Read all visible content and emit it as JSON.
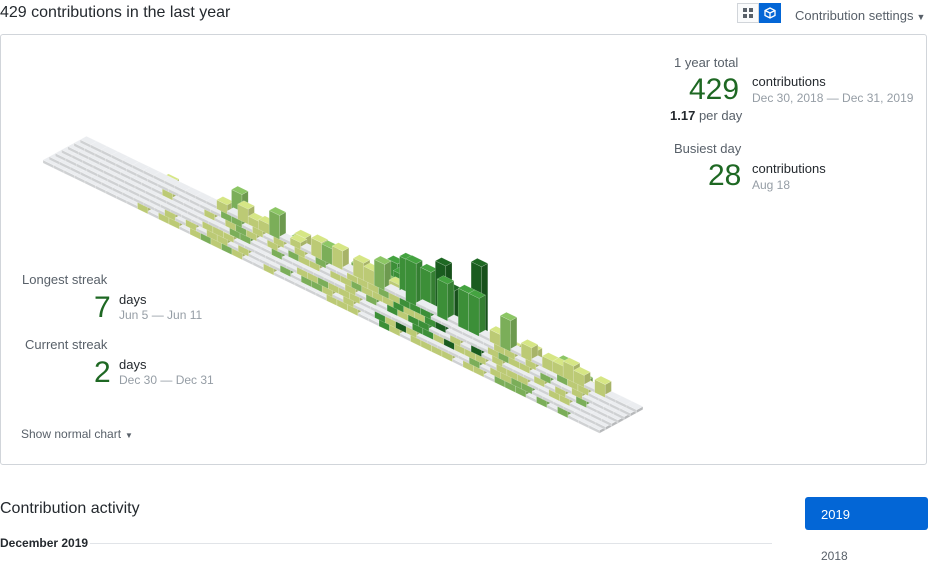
{
  "header": {
    "title": "429 contributions in the last year",
    "settings_label": "Contribution settings",
    "view_toggle": {
      "grid_icon": "grid-icon",
      "cube_icon": "cube-icon",
      "active": "isometric"
    }
  },
  "stats": {
    "year_total": {
      "label": "1 year total",
      "count": "429",
      "unit": "contributions",
      "range": "Dec 30, 2018 — Dec 31, 2019",
      "per_day_value": "1.17",
      "per_day_suffix": "per day"
    },
    "busiest_day": {
      "label": "Busiest day",
      "count": "28",
      "unit": "contributions",
      "date": "Aug 18"
    },
    "longest_streak": {
      "label": "Longest streak",
      "count": "7",
      "unit": "days",
      "range": "Jun 5 — Jun 11"
    },
    "current_streak": {
      "label": "Current streak",
      "count": "2",
      "unit": "days",
      "range": "Dec 30 — Dec 31"
    }
  },
  "show_normal_label": "Show normal chart",
  "activity": {
    "title": "Contribution activity",
    "month": "December 2019"
  },
  "years": [
    "2019",
    "2018"
  ],
  "colors": {
    "empty": "#ebedf0",
    "level1": "#d6e685",
    "level2": "#8cc665",
    "level3": "#44a340",
    "level4": "#1e6823",
    "accent": "#0366d6"
  }
}
